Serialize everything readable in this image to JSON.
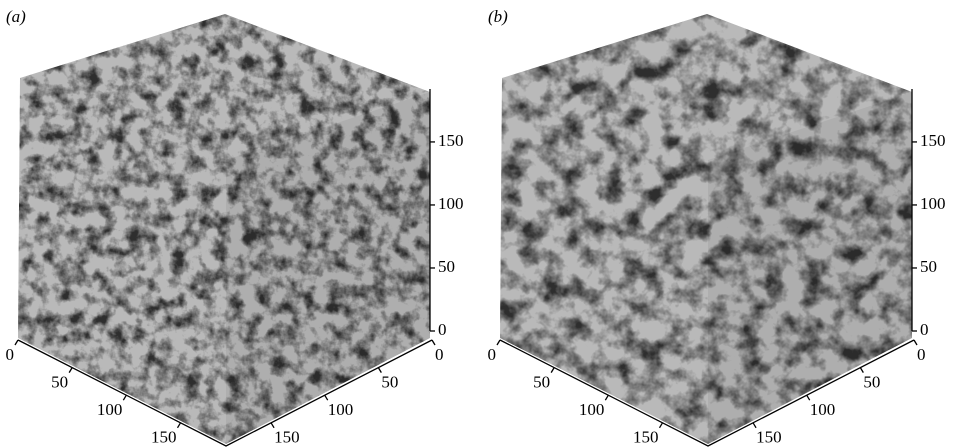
{
  "panels": [
    {
      "label": "(a)",
      "lim": [
        0,
        192
      ],
      "xticks": [
        0,
        50,
        100,
        150
      ],
      "yticks": [
        0,
        50,
        100,
        150
      ],
      "zticks": [
        0,
        50,
        100,
        150
      ]
    },
    {
      "label": "(b)",
      "lim": [
        0,
        192
      ],
      "xticks": [
        0,
        50,
        100,
        150
      ],
      "yticks": [
        0,
        50,
        100,
        150
      ],
      "zticks": [
        0,
        50,
        100,
        150
      ]
    }
  ]
}
